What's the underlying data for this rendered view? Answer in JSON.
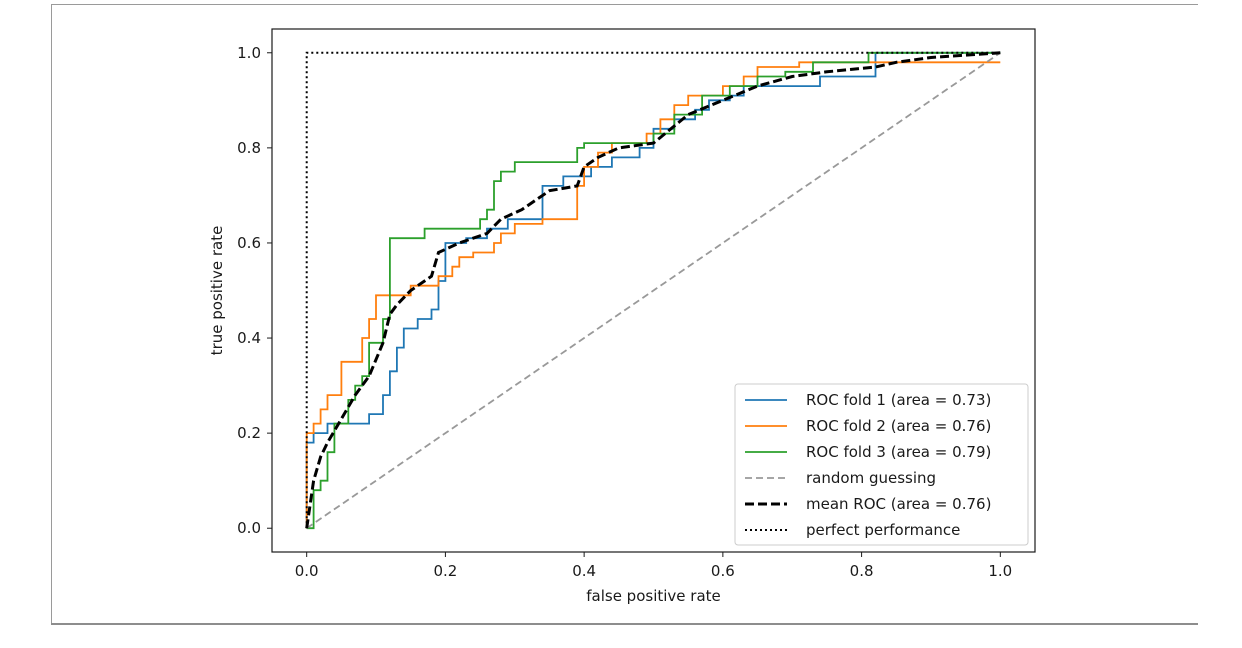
{
  "chart_data": {
    "type": "line",
    "title": "",
    "xlabel": "false positive rate",
    "ylabel": "true positive rate",
    "xlim": [
      -0.05,
      1.05
    ],
    "ylim": [
      -0.05,
      1.05
    ],
    "xticks": [
      0.0,
      0.2,
      0.4,
      0.6,
      0.8,
      1.0
    ],
    "yticks": [
      0.0,
      0.2,
      0.4,
      0.6,
      0.8,
      1.0
    ],
    "xtick_labels": [
      "0.0",
      "0.2",
      "0.4",
      "0.6",
      "0.8",
      "1.0"
    ],
    "ytick_labels": [
      "0.0",
      "0.2",
      "0.4",
      "0.6",
      "0.8",
      "1.0"
    ],
    "grid": false,
    "legend_position": "bottom-right",
    "series": [
      {
        "name": "ROC fold 1 (area = 0.73)",
        "color": "#1f77b4",
        "style": "solid",
        "points": [
          [
            0,
            0
          ],
          [
            0,
            0.18
          ],
          [
            0.01,
            0.18
          ],
          [
            0.01,
            0.2
          ],
          [
            0.03,
            0.2
          ],
          [
            0.03,
            0.22
          ],
          [
            0.09,
            0.22
          ],
          [
            0.09,
            0.24
          ],
          [
            0.11,
            0.24
          ],
          [
            0.11,
            0.28
          ],
          [
            0.12,
            0.28
          ],
          [
            0.12,
            0.33
          ],
          [
            0.13,
            0.33
          ],
          [
            0.13,
            0.38
          ],
          [
            0.14,
            0.38
          ],
          [
            0.14,
            0.42
          ],
          [
            0.16,
            0.42
          ],
          [
            0.16,
            0.44
          ],
          [
            0.18,
            0.44
          ],
          [
            0.18,
            0.46
          ],
          [
            0.19,
            0.46
          ],
          [
            0.19,
            0.52
          ],
          [
            0.2,
            0.52
          ],
          [
            0.2,
            0.6
          ],
          [
            0.23,
            0.6
          ],
          [
            0.23,
            0.61
          ],
          [
            0.26,
            0.61
          ],
          [
            0.26,
            0.63
          ],
          [
            0.29,
            0.63
          ],
          [
            0.29,
            0.65
          ],
          [
            0.34,
            0.65
          ],
          [
            0.34,
            0.72
          ],
          [
            0.37,
            0.72
          ],
          [
            0.37,
            0.74
          ],
          [
            0.41,
            0.74
          ],
          [
            0.41,
            0.76
          ],
          [
            0.44,
            0.76
          ],
          [
            0.44,
            0.78
          ],
          [
            0.48,
            0.78
          ],
          [
            0.48,
            0.8
          ],
          [
            0.5,
            0.8
          ],
          [
            0.5,
            0.84
          ],
          [
            0.53,
            0.84
          ],
          [
            0.53,
            0.86
          ],
          [
            0.56,
            0.86
          ],
          [
            0.56,
            0.88
          ],
          [
            0.58,
            0.88
          ],
          [
            0.58,
            0.9
          ],
          [
            0.61,
            0.9
          ],
          [
            0.61,
            0.91
          ],
          [
            0.63,
            0.91
          ],
          [
            0.63,
            0.93
          ],
          [
            0.74,
            0.93
          ],
          [
            0.74,
            0.95
          ],
          [
            0.82,
            0.95
          ],
          [
            0.82,
            1.0
          ],
          [
            1.0,
            1.0
          ]
        ]
      },
      {
        "name": "ROC fold 2 (area = 0.76)",
        "color": "#ff7f0e",
        "style": "solid",
        "points": [
          [
            0,
            0
          ],
          [
            0,
            0.2
          ],
          [
            0.01,
            0.2
          ],
          [
            0.01,
            0.22
          ],
          [
            0.02,
            0.22
          ],
          [
            0.02,
            0.25
          ],
          [
            0.03,
            0.25
          ],
          [
            0.03,
            0.28
          ],
          [
            0.05,
            0.28
          ],
          [
            0.05,
            0.35
          ],
          [
            0.08,
            0.35
          ],
          [
            0.08,
            0.4
          ],
          [
            0.09,
            0.4
          ],
          [
            0.09,
            0.44
          ],
          [
            0.1,
            0.44
          ],
          [
            0.1,
            0.49
          ],
          [
            0.15,
            0.49
          ],
          [
            0.15,
            0.51
          ],
          [
            0.19,
            0.51
          ],
          [
            0.19,
            0.53
          ],
          [
            0.21,
            0.53
          ],
          [
            0.21,
            0.55
          ],
          [
            0.22,
            0.55
          ],
          [
            0.22,
            0.57
          ],
          [
            0.24,
            0.57
          ],
          [
            0.24,
            0.58
          ],
          [
            0.27,
            0.58
          ],
          [
            0.27,
            0.6
          ],
          [
            0.28,
            0.6
          ],
          [
            0.28,
            0.62
          ],
          [
            0.3,
            0.62
          ],
          [
            0.3,
            0.64
          ],
          [
            0.34,
            0.64
          ],
          [
            0.34,
            0.65
          ],
          [
            0.39,
            0.65
          ],
          [
            0.39,
            0.72
          ],
          [
            0.4,
            0.72
          ],
          [
            0.4,
            0.76
          ],
          [
            0.42,
            0.76
          ],
          [
            0.42,
            0.79
          ],
          [
            0.44,
            0.79
          ],
          [
            0.44,
            0.81
          ],
          [
            0.49,
            0.81
          ],
          [
            0.49,
            0.83
          ],
          [
            0.51,
            0.83
          ],
          [
            0.51,
            0.86
          ],
          [
            0.53,
            0.86
          ],
          [
            0.53,
            0.89
          ],
          [
            0.55,
            0.89
          ],
          [
            0.55,
            0.91
          ],
          [
            0.6,
            0.91
          ],
          [
            0.6,
            0.93
          ],
          [
            0.63,
            0.93
          ],
          [
            0.63,
            0.95
          ],
          [
            0.65,
            0.95
          ],
          [
            0.65,
            0.97
          ],
          [
            0.71,
            0.97
          ],
          [
            0.71,
            0.98
          ],
          [
            1.0,
            0.98
          ]
        ]
      },
      {
        "name": "ROC fold 3 (area = 0.79)",
        "color": "#2ca02c",
        "style": "solid",
        "points": [
          [
            0,
            0
          ],
          [
            0.01,
            0
          ],
          [
            0.01,
            0.08
          ],
          [
            0.02,
            0.08
          ],
          [
            0.02,
            0.1
          ],
          [
            0.03,
            0.1
          ],
          [
            0.03,
            0.16
          ],
          [
            0.04,
            0.16
          ],
          [
            0.04,
            0.22
          ],
          [
            0.06,
            0.22
          ],
          [
            0.06,
            0.27
          ],
          [
            0.07,
            0.27
          ],
          [
            0.07,
            0.3
          ],
          [
            0.08,
            0.3
          ],
          [
            0.08,
            0.32
          ],
          [
            0.09,
            0.32
          ],
          [
            0.09,
            0.39
          ],
          [
            0.11,
            0.39
          ],
          [
            0.11,
            0.44
          ],
          [
            0.12,
            0.44
          ],
          [
            0.12,
            0.61
          ],
          [
            0.17,
            0.61
          ],
          [
            0.17,
            0.63
          ],
          [
            0.25,
            0.63
          ],
          [
            0.25,
            0.65
          ],
          [
            0.26,
            0.65
          ],
          [
            0.26,
            0.67
          ],
          [
            0.27,
            0.67
          ],
          [
            0.27,
            0.73
          ],
          [
            0.28,
            0.73
          ],
          [
            0.28,
            0.75
          ],
          [
            0.3,
            0.75
          ],
          [
            0.3,
            0.77
          ],
          [
            0.39,
            0.77
          ],
          [
            0.39,
            0.8
          ],
          [
            0.4,
            0.8
          ],
          [
            0.4,
            0.81
          ],
          [
            0.5,
            0.81
          ],
          [
            0.5,
            0.83
          ],
          [
            0.53,
            0.83
          ],
          [
            0.53,
            0.87
          ],
          [
            0.57,
            0.87
          ],
          [
            0.57,
            0.91
          ],
          [
            0.61,
            0.91
          ],
          [
            0.61,
            0.93
          ],
          [
            0.65,
            0.93
          ],
          [
            0.65,
            0.95
          ],
          [
            0.69,
            0.95
          ],
          [
            0.69,
            0.96
          ],
          [
            0.73,
            0.96
          ],
          [
            0.73,
            0.98
          ],
          [
            0.81,
            0.98
          ],
          [
            0.81,
            1.0
          ],
          [
            1.0,
            1.0
          ]
        ]
      },
      {
        "name": "random guessing",
        "color": "#999999",
        "style": "dashed",
        "points": [
          [
            0,
            0
          ],
          [
            1,
            1
          ]
        ]
      },
      {
        "name": "mean ROC (area = 0.76)",
        "color": "#000000",
        "style": "dashed-bold",
        "points": [
          [
            0,
            0
          ],
          [
            0.01,
            0.1
          ],
          [
            0.02,
            0.15
          ],
          [
            0.03,
            0.18
          ],
          [
            0.05,
            0.23
          ],
          [
            0.07,
            0.28
          ],
          [
            0.09,
            0.32
          ],
          [
            0.11,
            0.39
          ],
          [
            0.12,
            0.45
          ],
          [
            0.13,
            0.47
          ],
          [
            0.15,
            0.5
          ],
          [
            0.18,
            0.53
          ],
          [
            0.19,
            0.58
          ],
          [
            0.22,
            0.6
          ],
          [
            0.26,
            0.62
          ],
          [
            0.28,
            0.65
          ],
          [
            0.31,
            0.67
          ],
          [
            0.35,
            0.71
          ],
          [
            0.39,
            0.72
          ],
          [
            0.4,
            0.76
          ],
          [
            0.42,
            0.78
          ],
          [
            0.45,
            0.8
          ],
          [
            0.5,
            0.81
          ],
          [
            0.55,
            0.87
          ],
          [
            0.6,
            0.9
          ],
          [
            0.65,
            0.93
          ],
          [
            0.7,
            0.95
          ],
          [
            0.75,
            0.96
          ],
          [
            0.82,
            0.97
          ],
          [
            0.85,
            0.98
          ],
          [
            0.9,
            0.99
          ],
          [
            1.0,
            1.0
          ]
        ]
      },
      {
        "name": "perfect performance",
        "color": "#000000",
        "style": "dotted",
        "points": [
          [
            0,
            0
          ],
          [
            0,
            1
          ],
          [
            1,
            1
          ]
        ]
      }
    ]
  }
}
